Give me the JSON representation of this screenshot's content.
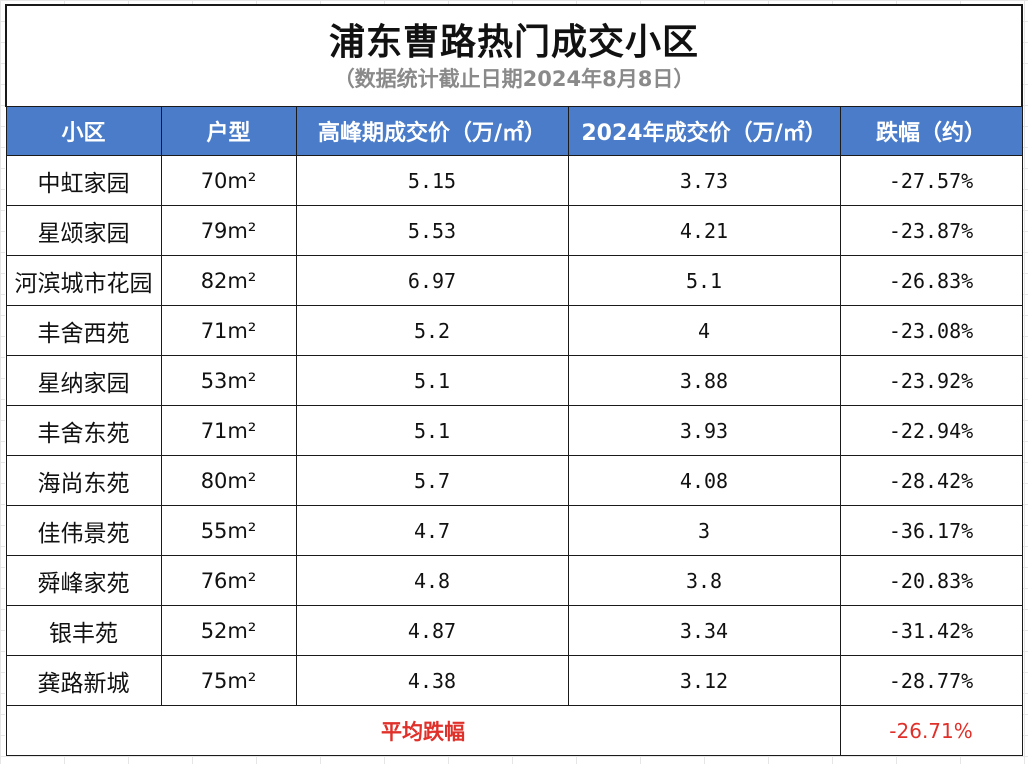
{
  "title": "浦东曹路热门成交小区",
  "subtitle": "（数据统计截止日期2024年8月8日）",
  "columns": [
    "小区",
    "户型",
    "高峰期成交价（万/㎡）",
    "2024年成交价（万/㎡）",
    "跌幅（约）"
  ],
  "rows": [
    {
      "name": "中虹家园",
      "size": "70m²",
      "peak": "5.15",
      "price_2024": "3.73",
      "change": "-27.57%"
    },
    {
      "name": "星颂家园",
      "size": "79m²",
      "peak": "5.53",
      "price_2024": "4.21",
      "change": "-23.87%"
    },
    {
      "name": "河滨城市花园",
      "size": "82m²",
      "peak": "6.97",
      "price_2024": "5.1",
      "change": "-26.83%"
    },
    {
      "name": "丰舍西苑",
      "size": "71m²",
      "peak": "5.2",
      "price_2024": "4",
      "change": "-23.08%"
    },
    {
      "name": "星纳家园",
      "size": "53m²",
      "peak": "5.1",
      "price_2024": "3.88",
      "change": "-23.92%"
    },
    {
      "name": "丰舍东苑",
      "size": "71m²",
      "peak": "5.1",
      "price_2024": "3.93",
      "change": "-22.94%"
    },
    {
      "name": "海尚东苑",
      "size": "80m²",
      "peak": "5.7",
      "price_2024": "4.08",
      "change": "-28.42%"
    },
    {
      "name": "佳伟景苑",
      "size": "55m²",
      "peak": "4.7",
      "price_2024": "3",
      "change": "-36.17%"
    },
    {
      "name": "舜峰家苑",
      "size": "76m²",
      "peak": "4.8",
      "price_2024": "3.8",
      "change": "-20.83%"
    },
    {
      "name": "银丰苑",
      "size": "52m²",
      "peak": "4.87",
      "price_2024": "3.34",
      "change": "-31.42%"
    },
    {
      "name": "龚路新城",
      "size": "75m²",
      "peak": "4.38",
      "price_2024": "3.12",
      "change": "-28.77%"
    }
  ],
  "footer": {
    "label": "平均跌幅",
    "value": "-26.71%"
  },
  "colors": {
    "header_bg": "#4a7cc9",
    "header_text": "#ffffff",
    "average_text": "#e0302a",
    "subtitle_text": "#8a8a8a"
  }
}
